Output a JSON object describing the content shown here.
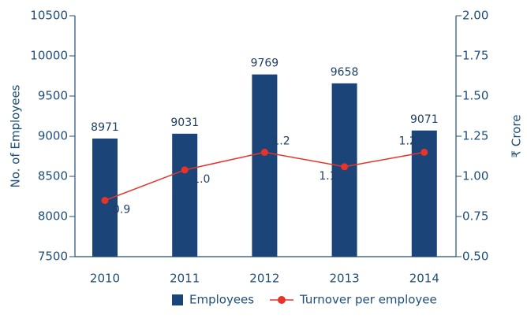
{
  "chart_data": {
    "type": "bar_line",
    "categories": [
      "2010",
      "2011",
      "2012",
      "2013",
      "2014"
    ],
    "series": [
      {
        "name": "Employees",
        "color": "#1b4479",
        "values": [
          8971,
          9031,
          9769,
          9658,
          9071
        ]
      },
      {
        "name": "Turnover per employee",
        "color": "#e8332a",
        "axis": "y2",
        "values": [
          0.85,
          1.04,
          1.15,
          1.06,
          1.15
        ],
        "value_labels": [
          "0.9",
          "1.0",
          "1.2",
          "1.1",
          "1.2"
        ]
      }
    ],
    "ylabel": "No. of Employees",
    "y2label": "₹ Crore",
    "ylim": [
      7500,
      10500
    ],
    "yticks": [
      7500,
      8000,
      8500,
      9000,
      9500,
      10000,
      10500
    ],
    "y2lim": [
      0.5,
      2.0
    ],
    "y2ticks": [
      {
        "value": 0.5,
        "label": "0.50"
      },
      {
        "value": 0.75,
        "label": "0.75"
      },
      {
        "value": 1.0,
        "label": "1.00"
      },
      {
        "value": 1.25,
        "label": "1.25"
      },
      {
        "value": 1.5,
        "label": "1.50"
      },
      {
        "value": 1.75,
        "label": "1.75"
      },
      {
        "value": 2.0,
        "label": "2.00"
      }
    ],
    "legend": "bottom"
  }
}
